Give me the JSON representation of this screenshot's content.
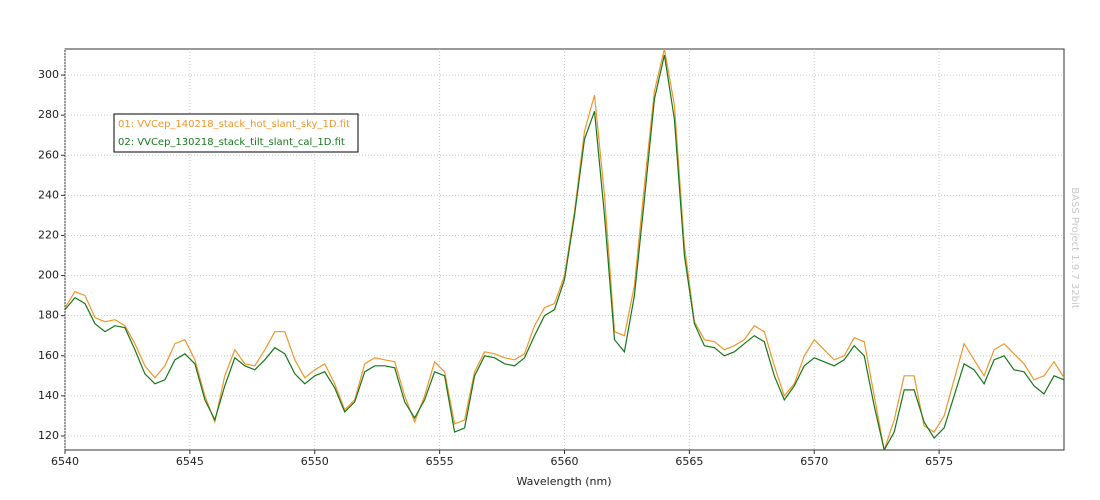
{
  "chart_data": {
    "type": "line",
    "x_label": "Wavelength (nm)",
    "watermark": "BASS Project 1.9.7 32bit",
    "x": [
      6540,
      6540.4,
      6540.8,
      6541.2,
      6541.6,
      6542,
      6542.4,
      6542.8,
      6543.2,
      6543.6,
      6544,
      6544.4,
      6544.8,
      6545.2,
      6545.6,
      6546,
      6546.4,
      6546.8,
      6547.2,
      6547.6,
      6548,
      6548.4,
      6548.8,
      6549.2,
      6549.6,
      6550,
      6550.4,
      6550.8,
      6551.2,
      6551.6,
      6552,
      6552.4,
      6552.8,
      6553.2,
      6553.6,
      6554,
      6554.4,
      6554.8,
      6555.2,
      6555.6,
      6556,
      6556.4,
      6556.8,
      6557.2,
      6557.6,
      6558,
      6558.4,
      6558.8,
      6559.2,
      6559.6,
      6560,
      6560.4,
      6560.8,
      6561.2,
      6561.6,
      6562,
      6562.4,
      6562.8,
      6563.2,
      6563.6,
      6564,
      6564.4,
      6564.8,
      6565.2,
      6565.6,
      6566,
      6566.4,
      6566.8,
      6567.2,
      6567.6,
      6568,
      6568.4,
      6568.8,
      6569.2,
      6569.6,
      6570,
      6570.4,
      6570.8,
      6571.2,
      6571.6,
      6572,
      6572.4,
      6572.8,
      6573.2,
      6573.6,
      6574,
      6574.4,
      6574.8,
      6575.2,
      6575.6,
      6576,
      6576.4,
      6576.8,
      6577.2,
      6577.6,
      6578,
      6578.4,
      6578.8,
      6579.2,
      6579.6,
      6580
    ],
    "series": [
      {
        "name": "01: VVCep_140218_stack_hot_slant_sky_1D.fit",
        "color": "#f0962a",
        "values": [
          184,
          192,
          190,
          179,
          177,
          178,
          175,
          166,
          155,
          149,
          155,
          166,
          168,
          158,
          140,
          127,
          150,
          163,
          156,
          155,
          163,
          172,
          172,
          158,
          149,
          153,
          156,
          146,
          133,
          138,
          156,
          159,
          158,
          157,
          140,
          127,
          140,
          157,
          152,
          126,
          128,
          152,
          162,
          161,
          159,
          158,
          161,
          175,
          184,
          186,
          200,
          232,
          272,
          290,
          240,
          172,
          170,
          195,
          245,
          292,
          313,
          285,
          215,
          177,
          168,
          167,
          163,
          165,
          168,
          175,
          172,
          155,
          140,
          146,
          160,
          168,
          163,
          158,
          160,
          169,
          167,
          140,
          113,
          128,
          150,
          150,
          125,
          122,
          130,
          148,
          166,
          158,
          150,
          163,
          166,
          161,
          156,
          148,
          150,
          157,
          149
        ]
      },
      {
        "name": "02: VVCep_130218_stack_tilt_slant_cal_1D.fit",
        "color": "#16781c",
        "values": [
          183,
          189,
          186,
          176,
          172,
          175,
          174,
          163,
          151,
          146,
          148,
          158,
          161,
          156,
          138,
          128,
          145,
          159,
          155,
          153,
          158,
          164,
          161,
          151,
          146,
          150,
          152,
          144,
          132,
          137,
          152,
          155,
          155,
          154,
          137,
          129,
          138,
          152,
          150,
          122,
          124,
          150,
          160,
          159,
          156,
          155,
          159,
          170,
          180,
          183,
          198,
          230,
          268,
          282,
          230,
          168,
          162,
          190,
          238,
          288,
          310,
          278,
          210,
          176,
          165,
          164,
          160,
          162,
          166,
          170,
          167,
          150,
          138,
          145,
          155,
          159,
          157,
          155,
          158,
          165,
          160,
          135,
          113,
          122,
          143,
          143,
          127,
          119,
          124,
          140,
          156,
          153,
          146,
          158,
          160,
          153,
          152,
          145,
          141,
          150,
          148
        ]
      }
    ],
    "xlim": [
      6540,
      6580
    ],
    "xticks": [
      6540,
      6545,
      6550,
      6555,
      6560,
      6565,
      6570,
      6575
    ],
    "ylim": [
      113,
      313
    ],
    "yticks": [
      120,
      140,
      160,
      180,
      200,
      220,
      240,
      260,
      280,
      300
    ],
    "grid": true,
    "legend": "upper left"
  }
}
